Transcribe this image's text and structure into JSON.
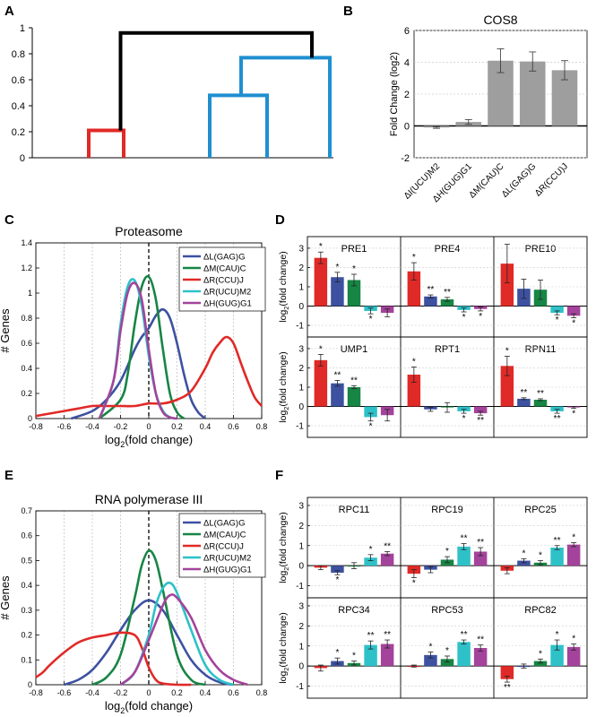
{
  "panel_letters": {
    "a": "A",
    "b": "B",
    "c": "C",
    "d": "D",
    "e": "E",
    "f": "F"
  },
  "colors": {
    "red": "#e02a27",
    "blue": "#3d51a0",
    "green": "#178544",
    "cyan": "#2ec1c8",
    "magenta": "#a4439b",
    "gray": "#9e9e9e",
    "black": "#000000",
    "dend_blue": "#1f8fd0"
  },
  "chart_data": [
    {
      "id": "A",
      "type": "dendrogram",
      "ylim": [
        0,
        1
      ],
      "yticks": [
        "0",
        "0.2",
        "0.4",
        "0.6",
        "0.8",
        "1"
      ],
      "merges": [
        {
          "color": "red",
          "height": 0.21
        },
        {
          "color": "blue",
          "height": 0.48
        },
        {
          "color": "blue",
          "height": 0.77
        },
        {
          "color": "black",
          "height": 0.96
        }
      ]
    },
    {
      "id": "B",
      "type": "bar",
      "title": "COS8",
      "ylabel": "Fold Change (log2)",
      "ylim": [
        -2,
        6
      ],
      "yticks": [
        "-2",
        "0",
        "2",
        "4",
        "6"
      ],
      "categories": [
        "ΔI(UCU)M2",
        "ΔH(GUG)G1",
        "ΔM(CAU)C",
        "ΔL(GAG)G",
        "ΔR(CCU)J"
      ],
      "values": [
        -0.1,
        0.25,
        4.1,
        4.05,
        3.5
      ],
      "errors": [
        0.05,
        0.15,
        0.75,
        0.6,
        0.6
      ]
    },
    {
      "id": "C",
      "type": "line",
      "title": "Proteasome",
      "xlabel": "log",
      "xlabel_sub": "2",
      "xlabel_tail": "(fold change)",
      "ylabel": "# Genes",
      "xlim": [
        -0.8,
        0.8
      ],
      "ylim": [
        0,
        1.4
      ],
      "xticks": [
        "-0.8",
        "-0.6",
        "-0.4",
        "-0.2",
        "0",
        "0.2",
        "0.4",
        "0.6",
        "0.8"
      ],
      "yticks": [
        "0",
        "0.2",
        "0.4",
        "0.6",
        "0.8",
        "1",
        "1.2",
        "1.4"
      ],
      "legend": [
        "ΔL(GAG)G",
        "ΔM(CAU)C",
        "ΔR(CCU)J",
        "ΔR(UCU)M2",
        "ΔH(GUG)G1"
      ],
      "series": [
        {
          "name": "ΔL(GAG)G",
          "color": "blue",
          "x": [
            -0.55,
            -0.4,
            -0.3,
            -0.2,
            -0.1,
            -0.05,
            0.0,
            0.05,
            0.1,
            0.15,
            0.2,
            0.25,
            0.3,
            0.35,
            0.4
          ],
          "y": [
            0,
            0.06,
            0.15,
            0.3,
            0.55,
            0.65,
            0.72,
            0.82,
            0.87,
            0.8,
            0.6,
            0.35,
            0.15,
            0.05,
            0
          ]
        },
        {
          "name": "ΔM(CAU)C",
          "color": "green",
          "x": [
            -0.35,
            -0.2,
            -0.15,
            -0.1,
            -0.05,
            0.0,
            0.05,
            0.1,
            0.15,
            0.2,
            0.25
          ],
          "y": [
            0,
            0.15,
            0.35,
            0.75,
            1.05,
            1.13,
            0.95,
            0.55,
            0.2,
            0.05,
            0
          ]
        },
        {
          "name": "ΔR(CCU)J",
          "color": "red",
          "x": [
            -0.8,
            -0.7,
            -0.6,
            -0.5,
            -0.4,
            -0.3,
            -0.2,
            -0.1,
            0,
            0.1,
            0.2,
            0.3,
            0.4,
            0.45,
            0.5,
            0.55,
            0.6,
            0.65,
            0.7,
            0.75,
            0.8
          ],
          "y": [
            0.02,
            0.04,
            0.06,
            0.08,
            0.1,
            0.1,
            0.1,
            0.1,
            0.12,
            0.12,
            0.15,
            0.22,
            0.4,
            0.52,
            0.6,
            0.65,
            0.6,
            0.45,
            0.3,
            0.17,
            0.1
          ]
        },
        {
          "name": "ΔR(UCU)M2",
          "color": "cyan",
          "x": [
            -0.35,
            -0.25,
            -0.2,
            -0.15,
            -0.1,
            -0.05,
            0.0,
            0.05,
            0.1,
            0.15,
            0.2
          ],
          "y": [
            0,
            0.3,
            0.75,
            1.05,
            1.1,
            0.9,
            0.5,
            0.2,
            0.06,
            0.01,
            0
          ]
        },
        {
          "name": "ΔH(GUG)G1",
          "color": "magenta",
          "x": [
            -0.35,
            -0.25,
            -0.2,
            -0.15,
            -0.1,
            -0.05,
            0.0,
            0.05,
            0.1,
            0.15,
            0.2
          ],
          "y": [
            0,
            0.3,
            0.7,
            1.0,
            1.08,
            0.95,
            0.55,
            0.2,
            0.05,
            0.01,
            0
          ]
        }
      ]
    },
    {
      "id": "D",
      "type": "bar",
      "ylabel_pre": "log",
      "ylabel_sub": "2",
      "ylabel_tail": "(fold change)",
      "ylim": [
        -1.6,
        3.6
      ],
      "yticks": [
        "-1",
        "0",
        "1",
        "2",
        "3"
      ],
      "series_colors": [
        "red",
        "blue",
        "green",
        "cyan",
        "magenta"
      ],
      "subplots": [
        {
          "title": "PRE1",
          "values": [
            2.5,
            1.5,
            1.35,
            -0.25,
            -0.35
          ],
          "errors": [
            0.3,
            0.25,
            0.3,
            0.15,
            0.2
          ],
          "stars": [
            "*",
            "*",
            "*",
            "*",
            ""
          ]
        },
        {
          "title": "PRE4",
          "values": [
            1.8,
            0.5,
            0.35,
            -0.2,
            -0.15
          ],
          "errors": [
            0.45,
            0.08,
            0.1,
            0.1,
            0.1
          ],
          "stars": [
            "*",
            "**",
            "**",
            "*",
            "*"
          ]
        },
        {
          "title": "PRE10",
          "values": [
            2.2,
            0.9,
            0.85,
            -0.35,
            -0.5
          ],
          "errors": [
            1.0,
            0.5,
            0.5,
            0.1,
            0.1
          ],
          "stars": [
            "",
            "",
            "",
            "*",
            "*"
          ]
        },
        {
          "title": "UMP1",
          "values": [
            2.4,
            1.2,
            1.0,
            -0.55,
            -0.45
          ],
          "errors": [
            0.3,
            0.15,
            0.08,
            0.2,
            0.3
          ],
          "stars": [
            "*",
            "**",
            "**",
            "*",
            ""
          ]
        },
        {
          "title": "RPT1",
          "values": [
            1.65,
            -0.15,
            -0.05,
            -0.25,
            -0.35
          ],
          "errors": [
            0.4,
            0.1,
            0.25,
            0.1,
            0.1
          ],
          "stars": [
            "*",
            "",
            "",
            "*",
            "**"
          ]
        },
        {
          "title": "RPN11",
          "values": [
            2.1,
            0.4,
            0.35,
            -0.25,
            -0.05
          ],
          "errors": [
            0.5,
            0.05,
            0.05,
            0.1,
            0.05
          ],
          "stars": [
            "*",
            "**",
            "**",
            "**",
            "*"
          ]
        }
      ]
    },
    {
      "id": "E",
      "type": "line",
      "title": "RNA polymerase III",
      "xlabel": "log",
      "xlabel_sub": "2",
      "xlabel_tail": "(fold change)",
      "ylabel": "# Genes",
      "xlim": [
        -0.8,
        0.8
      ],
      "ylim": [
        0,
        0.7
      ],
      "xticks": [
        "-0.8",
        "-0.6",
        "-0.4",
        "-0.2",
        "0",
        "0.2",
        "0.4",
        "0.6",
        "0.8"
      ],
      "yticks": [
        "0",
        "0.1",
        "0.2",
        "0.3",
        "0.4",
        "0.5",
        "0.6",
        "0.7"
      ],
      "legend": [
        "ΔL(GAG)G",
        "ΔM(CAU)C",
        "ΔR(CCU)J",
        "ΔR(UCU)M2",
        "ΔH(GUG)G1"
      ],
      "series": [
        {
          "name": "ΔL(GAG)G",
          "color": "blue",
          "x": [
            -0.6,
            -0.5,
            -0.4,
            -0.3,
            -0.2,
            -0.1,
            0.0,
            0.1,
            0.2,
            0.3,
            0.4,
            0.5,
            0.6
          ],
          "y": [
            0,
            0.02,
            0.06,
            0.13,
            0.22,
            0.3,
            0.34,
            0.3,
            0.2,
            0.1,
            0.04,
            0.01,
            0
          ]
        },
        {
          "name": "ΔM(CAU)C",
          "color": "green",
          "x": [
            -0.4,
            -0.3,
            -0.2,
            -0.1,
            -0.05,
            0.0,
            0.05,
            0.1,
            0.2,
            0.3,
            0.4
          ],
          "y": [
            0,
            0.03,
            0.12,
            0.35,
            0.48,
            0.54,
            0.5,
            0.38,
            0.12,
            0.02,
            0
          ]
        },
        {
          "name": "ΔR(CCU)J",
          "color": "red",
          "x": [
            -0.8,
            -0.75,
            -0.7,
            -0.6,
            -0.5,
            -0.4,
            -0.3,
            -0.2,
            -0.1,
            -0.05,
            0.0,
            0.05,
            0.1,
            0.2,
            0.3
          ],
          "y": [
            0.03,
            0.05,
            0.08,
            0.13,
            0.17,
            0.19,
            0.2,
            0.21,
            0.2,
            0.15,
            0.07,
            0.02,
            0.005,
            0,
            0
          ]
        },
        {
          "name": "ΔR(UCU)M2",
          "color": "cyan",
          "x": [
            -0.2,
            -0.1,
            0.0,
            0.05,
            0.1,
            0.15,
            0.2,
            0.3,
            0.4,
            0.5,
            0.6
          ],
          "y": [
            0,
            0.05,
            0.2,
            0.32,
            0.39,
            0.41,
            0.37,
            0.22,
            0.08,
            0.02,
            0
          ]
        },
        {
          "name": "ΔH(GUG)G1",
          "color": "magenta",
          "x": [
            -0.2,
            -0.1,
            0.0,
            0.1,
            0.15,
            0.2,
            0.3,
            0.4,
            0.5,
            0.6,
            0.7
          ],
          "y": [
            0,
            0.05,
            0.18,
            0.32,
            0.36,
            0.35,
            0.27,
            0.14,
            0.06,
            0.02,
            0
          ]
        }
      ]
    },
    {
      "id": "F",
      "type": "bar",
      "ylabel_pre": "log",
      "ylabel_sub": "2",
      "ylabel_tail": "(fold change)",
      "ylim": [
        -1.6,
        3.4
      ],
      "yticks": [
        "-1",
        "0",
        "1",
        "2",
        "3"
      ],
      "series_colors": [
        "red",
        "blue",
        "green",
        "cyan",
        "magenta"
      ],
      "subplots": [
        {
          "title": "RPC11",
          "values": [
            -0.1,
            -0.35,
            0.0,
            0.4,
            0.6
          ],
          "errors": [
            0.1,
            0.1,
            0.15,
            0.15,
            0.1
          ],
          "stars": [
            "",
            "*",
            "",
            "*",
            "**"
          ]
        },
        {
          "title": "RPC19",
          "values": [
            -0.4,
            -0.2,
            0.3,
            0.95,
            0.7
          ],
          "errors": [
            0.2,
            0.15,
            0.15,
            0.15,
            0.2
          ],
          "stars": [
            "*",
            "",
            "*",
            "**",
            "**"
          ]
        },
        {
          "title": "RPC25",
          "values": [
            -0.25,
            0.25,
            0.15,
            0.9,
            1.05
          ],
          "errors": [
            0.15,
            0.1,
            0.1,
            0.1,
            0.1
          ],
          "stars": [
            "",
            "*",
            "*",
            "**",
            "*"
          ]
        },
        {
          "title": "RPC34",
          "values": [
            -0.1,
            0.25,
            0.15,
            1.05,
            1.1
          ],
          "errors": [
            0.15,
            0.15,
            0.1,
            0.2,
            0.2
          ],
          "stars": [
            "",
            "*",
            "*",
            "**",
            "**"
          ]
        },
        {
          "title": "RPC53",
          "values": [
            0.0,
            0.55,
            0.35,
            1.2,
            0.9
          ],
          "errors": [
            0.05,
            0.15,
            0.15,
            0.1,
            0.15
          ],
          "stars": [
            "",
            "*",
            "*",
            "**",
            "**"
          ]
        },
        {
          "title": "RPC82",
          "values": [
            -0.65,
            0.0,
            0.25,
            1.05,
            0.95
          ],
          "errors": [
            0.15,
            0.1,
            0.1,
            0.25,
            0.15
          ],
          "stars": [
            "**",
            "",
            "*",
            "*",
            "*"
          ]
        }
      ]
    }
  ]
}
